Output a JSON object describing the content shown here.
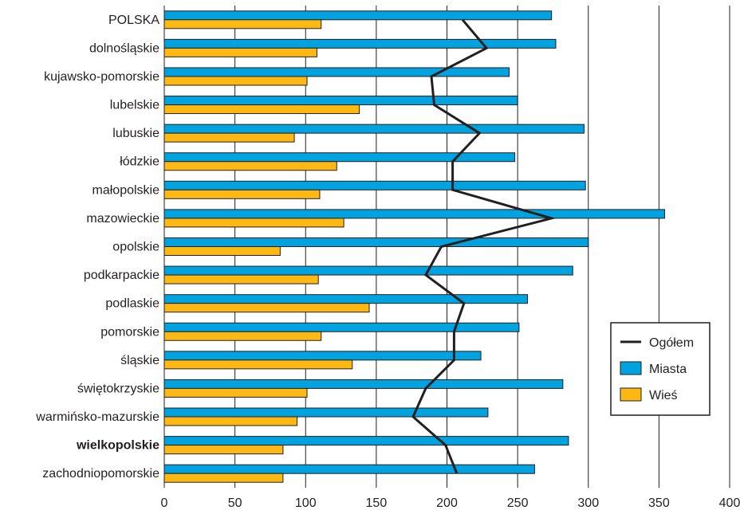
{
  "chart_data": {
    "type": "bar",
    "orientation": "horizontal",
    "categories": [
      "POLSKA",
      "dolnośląskie",
      "kujawsko-pomorskie",
      "lubelskie",
      "lubuskie",
      "łódzkie",
      "małopolskie",
      "mazowieckie",
      "opolskie",
      "podkarpackie",
      "podlaskie",
      "pomorskie",
      "śląskie",
      "świętokrzyskie",
      "warmińsko-mazurskie",
      "wielkopolskie",
      "zachodniopomorskie"
    ],
    "bold_categories": [
      "wielkopolskie"
    ],
    "series": [
      {
        "name": "Miasta",
        "kind": "bar",
        "color": "#00a3e0",
        "values": [
          274,
          277,
          244,
          250,
          297,
          248,
          298,
          354,
          300,
          289,
          257,
          251,
          224,
          282,
          229,
          286,
          262
        ]
      },
      {
        "name": "Wieś",
        "kind": "bar",
        "color": "#fdb813",
        "values": [
          111,
          108,
          101,
          138,
          92,
          122,
          110,
          127,
          82,
          109,
          145,
          111,
          133,
          101,
          94,
          84,
          84
        ]
      },
      {
        "name": "Ogółem",
        "kind": "line",
        "color": "#231f20",
        "values": [
          211,
          228,
          189,
          191,
          223,
          204,
          204,
          274,
          196,
          185,
          212,
          205,
          205,
          185,
          176,
          199,
          207
        ]
      }
    ],
    "xlim": [
      0,
      400
    ],
    "xticks": [
      0,
      50,
      100,
      150,
      200,
      250,
      300,
      350,
      400
    ],
    "grid": "vertical",
    "legend_position": "right",
    "legend": [
      "Ogółem",
      "Miasta",
      "Wieś"
    ]
  }
}
